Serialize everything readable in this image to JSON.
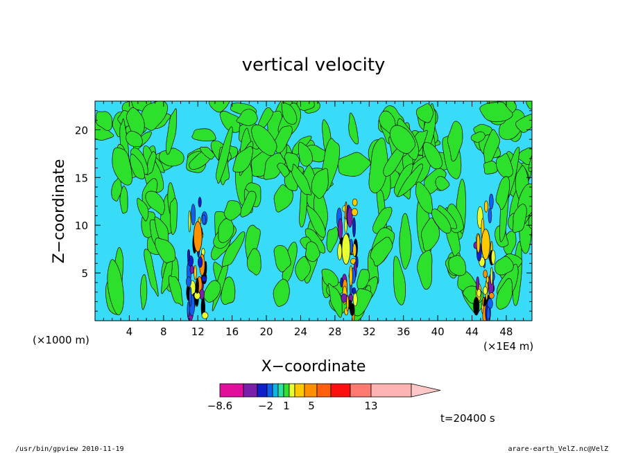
{
  "chart_data": {
    "type": "heatmap",
    "title": "vertical velocity",
    "xlabel": "X−coordinate",
    "ylabel": "Z−coordinate",
    "x_unit_left": "(×1000 m)",
    "x_unit_right": "(×1E4 m)",
    "xlim": [
      0,
      51
    ],
    "ylim": [
      0,
      23
    ],
    "x_ticks": [
      4,
      8,
      12,
      16,
      20,
      24,
      28,
      32,
      36,
      40,
      44,
      48
    ],
    "y_ticks": [
      5,
      10,
      15,
      20
    ],
    "time_label": "t=20400 s",
    "colorbar": {
      "tick_labels": [
        "−8.6",
        "−2",
        "1",
        "5",
        "13"
      ],
      "tick_values": [
        -8.6,
        -2,
        1,
        5,
        13
      ],
      "colors": [
        "#e0109c",
        "#7a20a8",
        "#1020c8",
        "#1060f0",
        "#10b4e0",
        "#30e0a0",
        "#30e030",
        "#e8ff30",
        "#ffc800",
        "#ff9000",
        "#ff6010",
        "#ff1010",
        "#ff7a70",
        "#ffb4b4"
      ]
    },
    "background_levels": {
      "weak_down": "#38dcf8",
      "weak_up": "#2ce02c"
    },
    "convective_cells_x": [
      12,
      29.5,
      45.5
    ]
  },
  "footer": {
    "left": "/usr/bin/gpview   2010-11-19",
    "right": "arare-earth_VelZ.nc@VelZ"
  }
}
